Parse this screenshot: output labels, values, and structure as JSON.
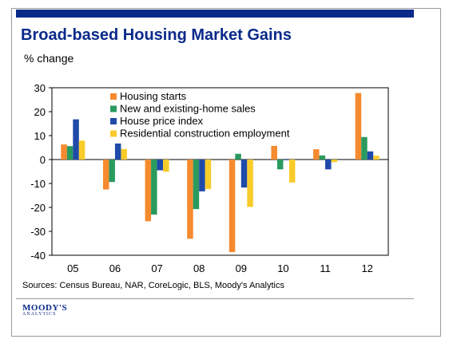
{
  "title": "Broad-based Housing Market Gains",
  "unit_label": "% change",
  "source": "Sources: Census Bureau, NAR, CoreLogic, BLS, Moody's Analytics",
  "logo": {
    "name": "MOODY'S",
    "sub": "ANALYTICS"
  },
  "colors": {
    "accent": "#0a2a8a",
    "housing_starts": "#f58a2e",
    "home_sales": "#2a9a5e",
    "house_price": "#1f4aa8",
    "construction": "#f8cc2a"
  },
  "chart_data": {
    "type": "bar",
    "categories": [
      "05",
      "06",
      "07",
      "08",
      "09",
      "10",
      "11",
      "12"
    ],
    "ylim": [
      -40,
      30
    ],
    "yticks": [
      30,
      20,
      10,
      0,
      -10,
      -20,
      -30,
      -40
    ],
    "legend_position": "top",
    "series": [
      {
        "name": "Housing starts",
        "color": "#f58a2e",
        "values": [
          6.3,
          -12.5,
          -25.8,
          -33.1,
          -38.7,
          5.7,
          4.3,
          27.8
        ]
      },
      {
        "name": "New and existing-home sales",
        "color": "#2a9a5e",
        "values": [
          5.6,
          -9.4,
          -23.0,
          -20.7,
          2.4,
          -4.1,
          1.7,
          9.4
        ]
      },
      {
        "name": "House price index",
        "color": "#1f4aa8",
        "values": [
          16.8,
          6.7,
          -4.5,
          -13.3,
          -11.7,
          -0.1,
          -4.1,
          3.4
        ]
      },
      {
        "name": "Residential construction employment",
        "color": "#f8cc2a",
        "values": [
          7.9,
          4.4,
          -5.1,
          -12.3,
          -19.8,
          -9.6,
          -1.1,
          1.6
        ]
      }
    ]
  }
}
